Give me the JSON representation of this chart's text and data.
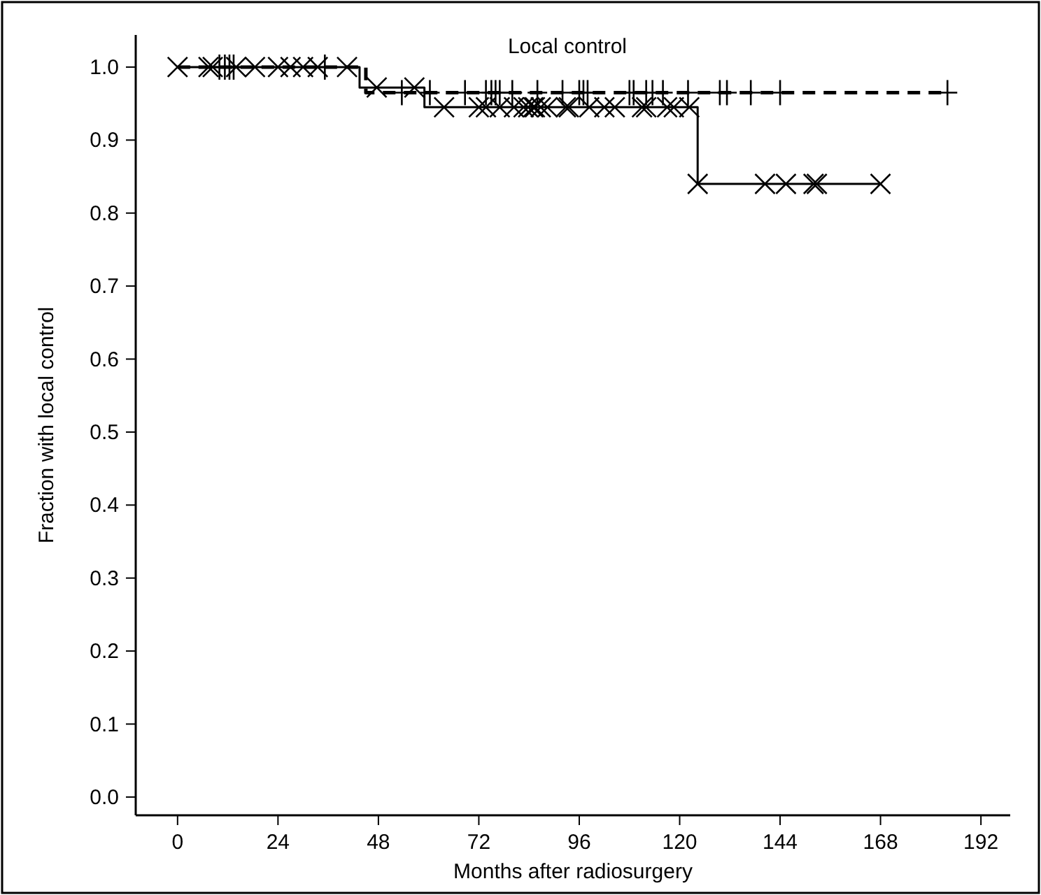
{
  "chart_data": {
    "type": "step",
    "title": "Local control",
    "xlabel": "Months after radiosurgery",
    "ylabel": "Fraction with local control",
    "xlim": [
      -10,
      199
    ],
    "ylim": [
      -0.025,
      1.044
    ],
    "xticks": [
      0,
      24,
      48,
      72,
      96,
      120,
      144,
      168,
      192
    ],
    "yticks": [
      {
        "value": 0,
        "label": "0.0"
      },
      {
        "value": 0.1,
        "label": "0.1"
      },
      {
        "value": 0.2,
        "label": "0.2"
      },
      {
        "value": 0.3,
        "label": "0.3"
      },
      {
        "value": 0.4,
        "label": "0.4"
      },
      {
        "value": 0.5,
        "label": "0.5"
      },
      {
        "value": 0.6,
        "label": "0.6"
      },
      {
        "value": 0.7,
        "label": "0.7"
      },
      {
        "value": 0.8,
        "label": "0.8"
      },
      {
        "value": 0.9,
        "label": "0.9"
      },
      {
        "value": 1,
        "label": "1.0"
      }
    ],
    "grid": false,
    "series": [
      {
        "color": "#000000",
        "line_style": "solid",
        "marker": "none",
        "x": [
          0,
          43.5,
          59,
          124.3,
          168
        ],
        "values": [
          1,
          0.972,
          0.945,
          0.84,
          0.84
        ]
      },
      {
        "color": "#000000",
        "line_style": "dashed",
        "marker": "none",
        "x": [
          0,
          45,
          184
        ],
        "values": [
          1,
          0.965,
          0.965
        ]
      },
      {
        "type": "scatter",
        "color": "#000000",
        "marker": "cross",
        "x": [
          0,
          7.4,
          8.4,
          14,
          18.5,
          24,
          27,
          30,
          33.5,
          40.5,
          47.6,
          56.6,
          63.7,
          72,
          73.7,
          77,
          80.4,
          82.7,
          83.8,
          85,
          85.4,
          86.8,
          88.4,
          92.8,
          93.5,
          98.4,
          102,
          104.5,
          111,
          112,
          117,
          118.6,
          122.3,
          124.3,
          140.4,
          145.4,
          152,
          152.8,
          168
        ],
        "values": [
          1,
          1,
          1,
          1,
          1,
          1,
          1,
          1,
          1,
          1,
          0.972,
          0.972,
          0.945,
          0.945,
          0.945,
          0.945,
          0.945,
          0.945,
          0.945,
          0.945,
          0.945,
          0.945,
          0.945,
          0.945,
          0.945,
          0.945,
          0.945,
          0.945,
          0.945,
          0.945,
          0.945,
          0.945,
          0.945,
          0.84,
          0.84,
          0.84,
          0.84,
          0.84,
          0.84
        ]
      },
      {
        "type": "scatter",
        "color": "#000000",
        "marker": "plus",
        "x": [
          10,
          11.3,
          12.4,
          13.4,
          35.2,
          53.6,
          60.3,
          68.7,
          73.7,
          75,
          76,
          77,
          80,
          86,
          92,
          96,
          97,
          98,
          108,
          109,
          112,
          113.5,
          116,
          122,
          129.6,
          131.3,
          137,
          144,
          184
        ],
        "values": [
          1,
          1,
          1,
          1,
          1,
          0.965,
          0.965,
          0.965,
          0.965,
          0.965,
          0.965,
          0.965,
          0.965,
          0.965,
          0.965,
          0.965,
          0.965,
          0.965,
          0.965,
          0.965,
          0.965,
          0.965,
          0.965,
          0.965,
          0.965,
          0.965,
          0.965,
          0.965,
          0.965
        ]
      }
    ]
  }
}
